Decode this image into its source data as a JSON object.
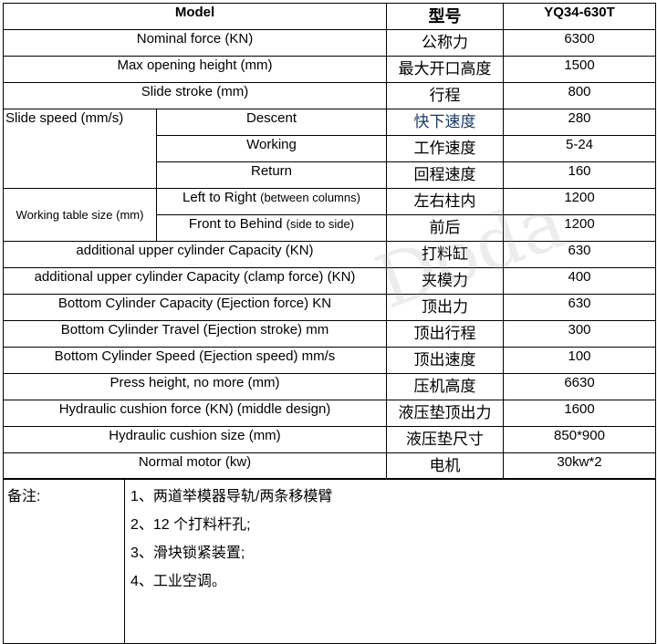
{
  "header": {
    "col1": "Model",
    "col2": "型号",
    "col3": "YQ34-630T"
  },
  "rows": [
    {
      "en": "Nominal force (KN)",
      "cn": "公称力",
      "val": "6300"
    },
    {
      "en": "Max opening height (mm)",
      "cn": "最大开口高度",
      "val": "1500"
    },
    {
      "en": "Slide stroke (mm)",
      "cn": "行程",
      "val": "800"
    }
  ],
  "slide_speed": {
    "label": "Slide speed (mm/s)",
    "items": [
      {
        "en": "Descent",
        "cn": "快下速度",
        "val": "280"
      },
      {
        "en": "Working",
        "cn": "工作速度",
        "val": "5-24"
      },
      {
        "en": "Return",
        "cn": "回程速度",
        "val": "160"
      }
    ]
  },
  "table_size": {
    "label": "Working table size (mm)",
    "items": [
      {
        "en": "Left to Right",
        "note": "(between columns)",
        "cn": "左右柱内",
        "val": "1200"
      },
      {
        "en": "Front to Behind",
        "note": "(side to side)",
        "cn": "前后",
        "val": "1200"
      }
    ]
  },
  "rows2": [
    {
      "en": "additional upper cylinder Capacity  (KN)",
      "cn": "打料缸",
      "val": "630"
    },
    {
      "en": "additional upper cylinder Capacity (clamp force) (KN)",
      "cn": "夹模力",
      "val": "400"
    },
    {
      "en": "Bottom Cylinder Capacity (Ejection force)  KN",
      "cn": "顶出力",
      "val": "630"
    },
    {
      "en": "Bottom Cylinder Travel (Ejection stroke) mm",
      "cn": "顶出行程",
      "val": "300"
    },
    {
      "en": "Bottom Cylinder Speed (Ejection speed) mm/s",
      "cn": "顶出速度",
      "val": "100"
    },
    {
      "en": "Press height, no more  (mm)",
      "cn": "压机高度",
      "val": "6630"
    },
    {
      "en": "Hydraulic cushion force (KN) (middle design)",
      "cn": "液压垫顶出力",
      "val": "1600"
    },
    {
      "en": "Hydraulic cushion size (mm)",
      "cn": "液压垫尺寸",
      "val": "850*900"
    },
    {
      "en": "Normal motor (kw)",
      "cn": "电机",
      "val": "30kw*2"
    }
  ],
  "remarks": {
    "label": "备注:",
    "lines": [
      "1、两道举模器导轨/两条移模臂",
      "2、12 个打料杆孔;",
      "3、滑块锁紧装置;",
      "4、工业空调。"
    ]
  },
  "watermark": "Doda"
}
